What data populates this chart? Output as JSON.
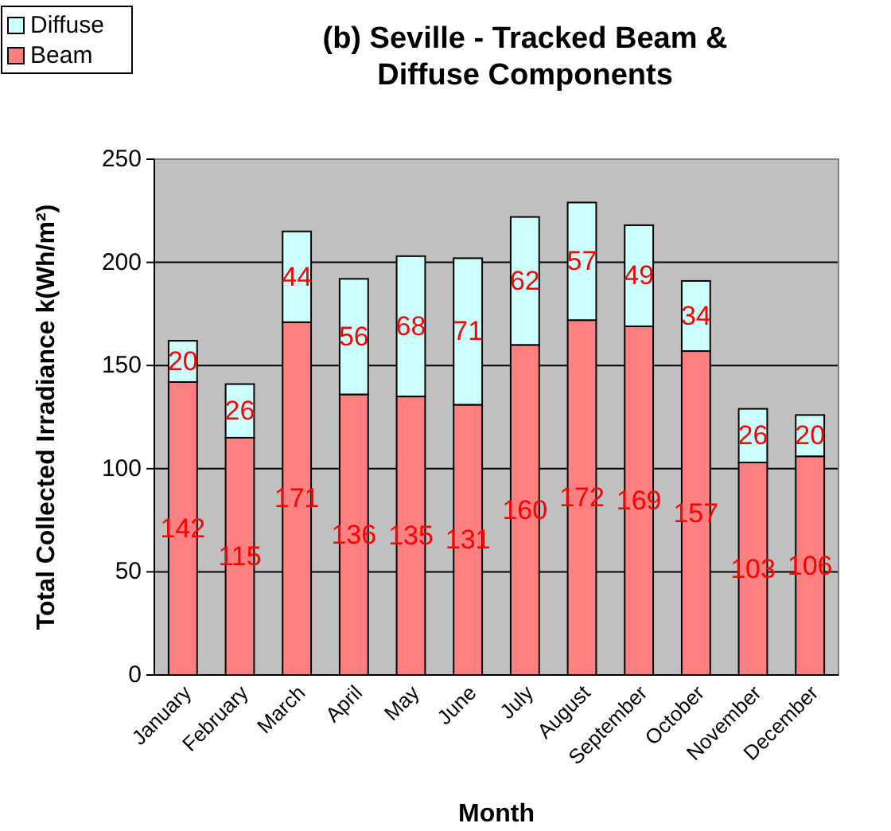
{
  "chart_data": {
    "type": "bar",
    "title": "(b) Seville - Tracked Beam & Diffuse Components",
    "xlabel": "Month",
    "ylabel": "Total Collected Irradiance k(Wh/m²)",
    "categories": [
      "January",
      "February",
      "March",
      "April",
      "May",
      "June",
      "July",
      "August",
      "September",
      "October",
      "November",
      "December"
    ],
    "series": [
      {
        "name": "Beam",
        "color": "#ff8080",
        "values": [
          142,
          115,
          171,
          136,
          135,
          131,
          160,
          172,
          169,
          157,
          103,
          106
        ]
      },
      {
        "name": "Diffuse",
        "color": "#ccffff",
        "values": [
          20,
          26,
          44,
          56,
          68,
          71,
          62,
          57,
          49,
          34,
          26,
          20
        ]
      }
    ],
    "stacked": true,
    "data_labels": true,
    "ylim": [
      0,
      250
    ],
    "yticks": [
      0,
      50,
      100,
      150,
      200,
      250
    ],
    "grid": "y",
    "legend": "top left"
  }
}
